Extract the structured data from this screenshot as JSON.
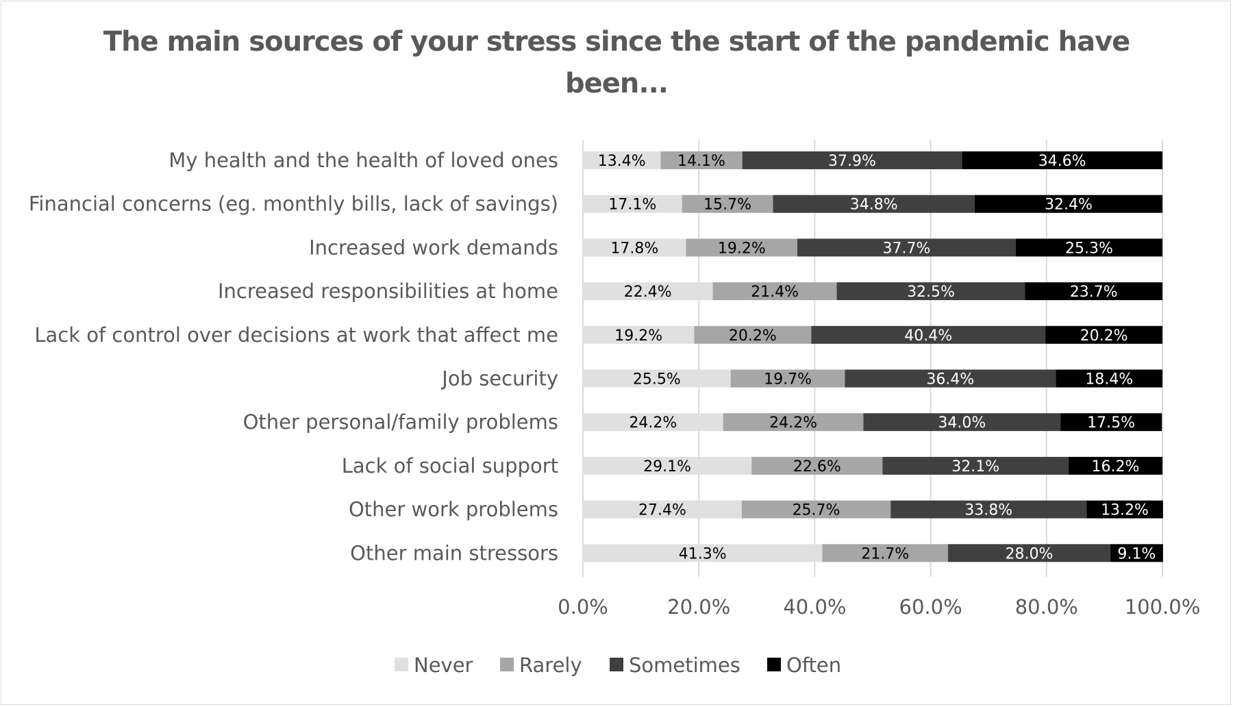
{
  "chart_data": {
    "type": "bar",
    "orientation": "horizontal",
    "stacked": "percent",
    "title": "The main sources of your stress since the start of the pandemic have been...",
    "title_lines": [
      "The main sources of your stress since the start of the pandemic have",
      "been..."
    ],
    "xlabel": "",
    "ylabel": "",
    "xlim": [
      0,
      100
    ],
    "x_ticks": [
      "0.0%",
      "20.0%",
      "40.0%",
      "60.0%",
      "80.0%",
      "100.0%"
    ],
    "grid": true,
    "legend_position": "bottom",
    "categories": [
      "My health and the health of loved ones",
      "Financial concerns (eg. monthly bills, lack of savings)",
      "Increased work demands",
      "Increased responsibilities at home",
      "Lack of control over decisions at work that affect me",
      "Job security",
      "Other personal/family problems",
      "Lack of social support",
      "Other work problems",
      "Other main stressors"
    ],
    "series": [
      {
        "name": "Never",
        "color": "#e0e0e0",
        "label_color": "#000000",
        "values": [
          13.4,
          17.1,
          17.8,
          22.4,
          19.2,
          25.5,
          24.2,
          29.1,
          27.4,
          41.3
        ]
      },
      {
        "name": "Rarely",
        "color": "#a6a6a6",
        "label_color": "#000000",
        "values": [
          14.1,
          15.7,
          19.2,
          21.4,
          20.2,
          19.7,
          24.2,
          22.6,
          25.7,
          21.7
        ]
      },
      {
        "name": "Sometimes",
        "color": "#404040",
        "label_color": "#ffffff",
        "values": [
          37.9,
          34.8,
          37.7,
          32.5,
          40.4,
          36.4,
          34.0,
          32.1,
          33.8,
          28.0
        ]
      },
      {
        "name": "Often",
        "color": "#000000",
        "label_color": "#ffffff",
        "values": [
          34.6,
          32.4,
          25.3,
          23.7,
          20.2,
          18.4,
          17.5,
          16.2,
          13.2,
          9.1
        ]
      }
    ]
  }
}
